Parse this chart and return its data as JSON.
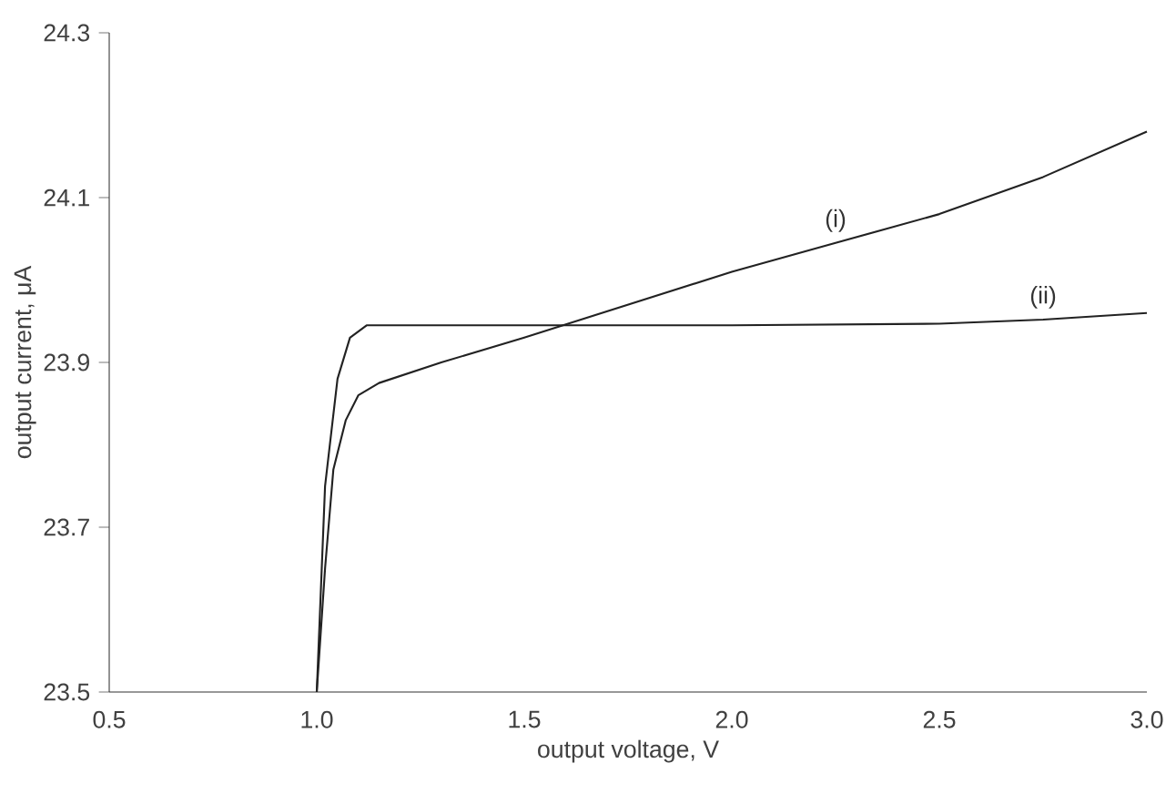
{
  "chart_data": {
    "type": "line",
    "xlabel": "output voltage, V",
    "ylabel": "output current, μA",
    "xlim": [
      0.5,
      3.0
    ],
    "ylim": [
      23.5,
      24.3
    ],
    "xticks": [
      {
        "value": 0.5,
        "label": "0.5"
      },
      {
        "value": 1.0,
        "label": "1.0"
      },
      {
        "value": 1.5,
        "label": "1.5"
      },
      {
        "value": 2.0,
        "label": "2.0"
      },
      {
        "value": 2.5,
        "label": "2.5"
      },
      {
        "value": 3.0,
        "label": "3.0"
      }
    ],
    "yticks": [
      23.5,
      23.7,
      23.9,
      24.1,
      24.3
    ],
    "grid": false,
    "marker": "none",
    "line_style": "solid",
    "series": [
      {
        "name": "(i)",
        "color": "#222222",
        "x": [
          1.0,
          1.02,
          1.04,
          1.07,
          1.1,
          1.15,
          1.3,
          1.5,
          1.75,
          2.0,
          2.25,
          2.5,
          2.75,
          3.0
        ],
        "values": [
          23.5,
          23.65,
          23.77,
          23.83,
          23.86,
          23.875,
          23.9,
          23.93,
          23.97,
          24.01,
          24.045,
          24.08,
          24.125,
          24.18
        ]
      },
      {
        "name": "(ii)",
        "color": "#222222",
        "x": [
          1.0,
          1.02,
          1.05,
          1.08,
          1.12,
          1.5,
          2.0,
          2.5,
          2.75,
          3.0
        ],
        "values": [
          23.5,
          23.75,
          23.88,
          23.93,
          23.945,
          23.945,
          23.945,
          23.947,
          23.952,
          23.96
        ]
      }
    ]
  }
}
